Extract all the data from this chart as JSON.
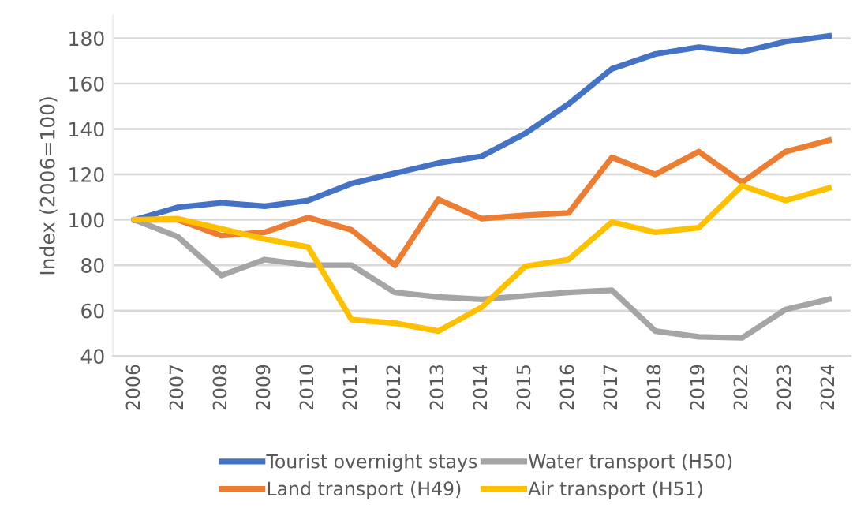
{
  "chart_data": {
    "type": "line",
    "ylabel": "Index (2006=100)",
    "categories": [
      "2006",
      "2007",
      "2008",
      "2009",
      "2010",
      "2011",
      "2012",
      "2013",
      "2014",
      "2015",
      "2016",
      "2017",
      "2018",
      "2019",
      "2022",
      "2023",
      "2024"
    ],
    "series": [
      {
        "name": "Tourist overnight stays",
        "color": "#4472c4",
        "values": [
          100,
          105.5,
          107.5,
          106,
          108.5,
          116,
          120.5,
          125,
          128,
          138,
          151,
          166.5,
          173,
          176,
          174,
          178.5,
          181
        ]
      },
      {
        "name": "Land transport (H49)",
        "color": "#ed7d31",
        "values": [
          100,
          100,
          93,
          94.5,
          101,
          95.5,
          80,
          109,
          100.5,
          102,
          103,
          127.5,
          120,
          130,
          116.5,
          130,
          135
        ]
      },
      {
        "name": "Water transport (H50)",
        "color": "#a5a5a5",
        "values": [
          100,
          92.5,
          75.5,
          82.5,
          80,
          80,
          68,
          66,
          65,
          66.5,
          68,
          69,
          51,
          48.5,
          48,
          60.5,
          65
        ]
      },
      {
        "name": "Air transport (H51)",
        "color": "#ffc000",
        "values": [
          100,
          100.5,
          96,
          91.5,
          88,
          56,
          54.5,
          51,
          61.5,
          79.5,
          82.5,
          99,
          94.5,
          96.5,
          115,
          108.5,
          114
        ]
      }
    ],
    "ylim": [
      40,
      190
    ],
    "yticks": [
      40,
      60,
      80,
      100,
      120,
      140,
      160,
      180
    ],
    "grid": "y",
    "legend": "bottom",
    "marker": "none",
    "line_style": "solid"
  }
}
